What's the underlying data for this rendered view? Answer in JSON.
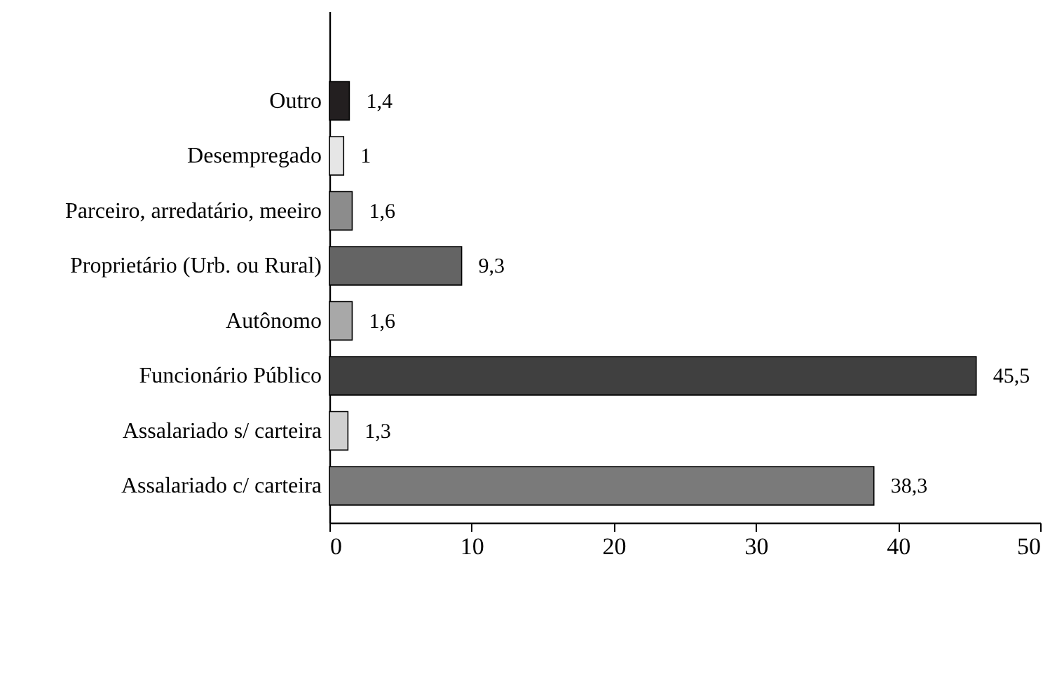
{
  "chart_data": {
    "type": "bar",
    "orientation": "horizontal",
    "categories": [
      "Outro",
      "Desempregado",
      "Parceiro, arredatário, meeiro",
      "Proprietário (Urb. ou Rural)",
      "Autônomo",
      "Funcionário Público",
      "Assalariado s/ carteira",
      "Assalariado c/ carteira"
    ],
    "values": [
      1.4,
      1,
      1.6,
      9.3,
      1.6,
      45.5,
      1.3,
      38.3
    ],
    "colors": [
      "#231f20",
      "#e6e6e6",
      "#8c8c8c",
      "#646464",
      "#a8a8a8",
      "#404040",
      "#d0d0d0",
      "#7a7a7a"
    ],
    "value_labels": [
      "1,4",
      "1",
      "1,6",
      "9,3",
      "1,6",
      "45,5",
      "1,3",
      "38,3"
    ],
    "xlim": [
      0,
      50
    ],
    "xticks": [
      0,
      10,
      20,
      30,
      40,
      50
    ],
    "grid": false
  }
}
